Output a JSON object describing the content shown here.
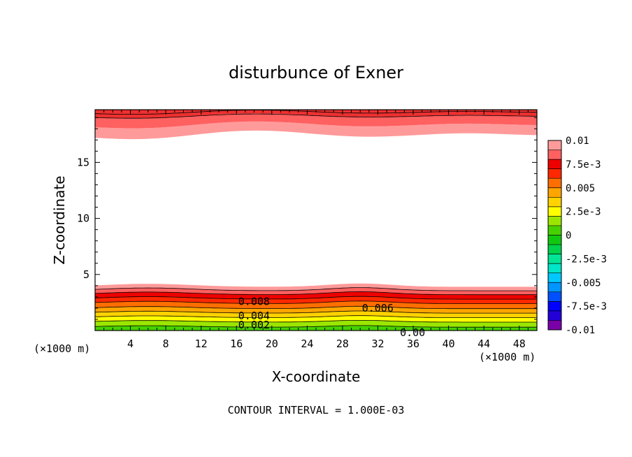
{
  "chart_data": {
    "type": "heatmap",
    "title": "disturbunce of Exner",
    "xlabel": "X-coordinate",
    "ylabel": "Z-coordinate",
    "x_unit_left": "(×1000 m)",
    "x_unit_right": "(×1000 m)",
    "xlim": [
      0,
      50
    ],
    "ylim": [
      0,
      19.7
    ],
    "x_ticks": [
      4,
      8,
      12,
      16,
      20,
      24,
      28,
      32,
      36,
      40,
      44,
      48
    ],
    "y_ticks": [
      5,
      10,
      15
    ],
    "footer": "CONTOUR INTERVAL = 1.000E-03",
    "colorbar": {
      "range": [
        -0.01,
        0.01
      ],
      "labels": [
        {
          "value": 0.01,
          "text": "0.01"
        },
        {
          "value": 0.0075,
          "text": "7.5e-3"
        },
        {
          "value": 0.005,
          "text": "0.005"
        },
        {
          "value": 0.0025,
          "text": "2.5e-3"
        },
        {
          "value": 0,
          "text": "0"
        },
        {
          "value": -0.0025,
          "text": "-2.5e-3"
        },
        {
          "value": -0.005,
          "text": "-0.005"
        },
        {
          "value": -0.0075,
          "text": "-7.5e-3"
        },
        {
          "value": -0.01,
          "text": "-0.01"
        }
      ],
      "colors": [
        "#7a00a8",
        "#2300d8",
        "#0000ff",
        "#0050ff",
        "#0095ff",
        "#00c8ff",
        "#00e6c8",
        "#00e696",
        "#00d24b",
        "#10c810",
        "#46d200",
        "#9be600",
        "#ffff00",
        "#ffd200",
        "#ffa500",
        "#ff6e00",
        "#ff2800",
        "#ee0000",
        "#ff6060",
        "#ff9a9a"
      ]
    },
    "contour_labels": [
      {
        "x": 16.2,
        "z": 2.6,
        "text": "0.008"
      },
      {
        "x": 30.2,
        "z": 2.0,
        "text": "0.006"
      },
      {
        "x": 16.2,
        "z": 1.3,
        "text": "0.004"
      },
      {
        "x": 16.2,
        "z": 0.5,
        "text": "0.002"
      },
      {
        "x": 34.5,
        "z": -0.2,
        "text": "0.00"
      }
    ]
  }
}
